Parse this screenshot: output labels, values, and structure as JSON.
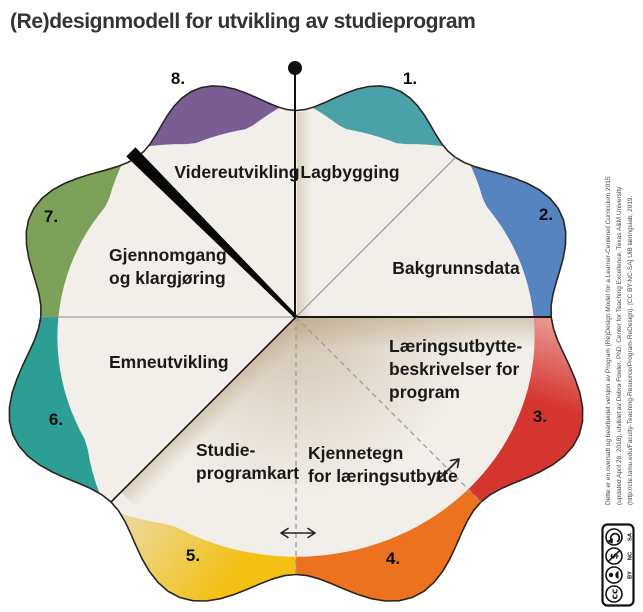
{
  "title": "(Re)designmodell for utvikling av studieprogram",
  "wheel": {
    "background": "#f2efea",
    "outline": "#2b2520",
    "shadow": "#b49a78",
    "sectors": [
      {
        "number": "1.",
        "color": "#4aa1a8",
        "label_lines": [
          "Lagbygging"
        ]
      },
      {
        "number": "2.",
        "color": "#5584c1",
        "label_lines": [
          "Bakgrunnsdata"
        ]
      },
      {
        "number": "3.",
        "color": "#d5352f",
        "color_light": "#e9928c",
        "label_lines": [
          "Læringsutbytte-",
          "beskrivelser for",
          "program"
        ]
      },
      {
        "number": "4.",
        "color": "#ec7220",
        "label_lines": [
          "Kjennetegn",
          "for læringsutbytte"
        ]
      },
      {
        "number": "5.",
        "color": "#f3c013",
        "color_light": "#ecd9a2",
        "label_lines": [
          "Studie-",
          "programkart"
        ]
      },
      {
        "number": "6.",
        "color": "#2d9e93",
        "label_lines": [
          "Emneutvikling"
        ]
      },
      {
        "number": "7.",
        "color": "#7ea15a",
        "label_lines": [
          "Gjennomgang",
          "og klargjøring"
        ]
      },
      {
        "number": "8.",
        "color": "#7a5e93",
        "label_lines": [
          "Videreutvikling"
        ]
      }
    ]
  },
  "credit_lines": [
    "Dette er en oversatt og bearbeidet versjon av Program (Re)Design Model for a Learner-Centered Curriculum 2015",
    "(updated April 26, 2018), utviklet av Debra Fowler, PhD, Center for Teaching Excellence, Texas A&M University",
    "(http://cte.tamu.edu/Faculty-Teaching-Resource/Program-ReDesign). [CC BY-NC-SA] UiB læringslab, 2019."
  ],
  "license": {
    "name": "CC BY-NC-SA",
    "cc_glyph": "cc",
    "nc_glyph": "$",
    "labels": [
      "BY",
      "NC",
      "SA"
    ]
  }
}
